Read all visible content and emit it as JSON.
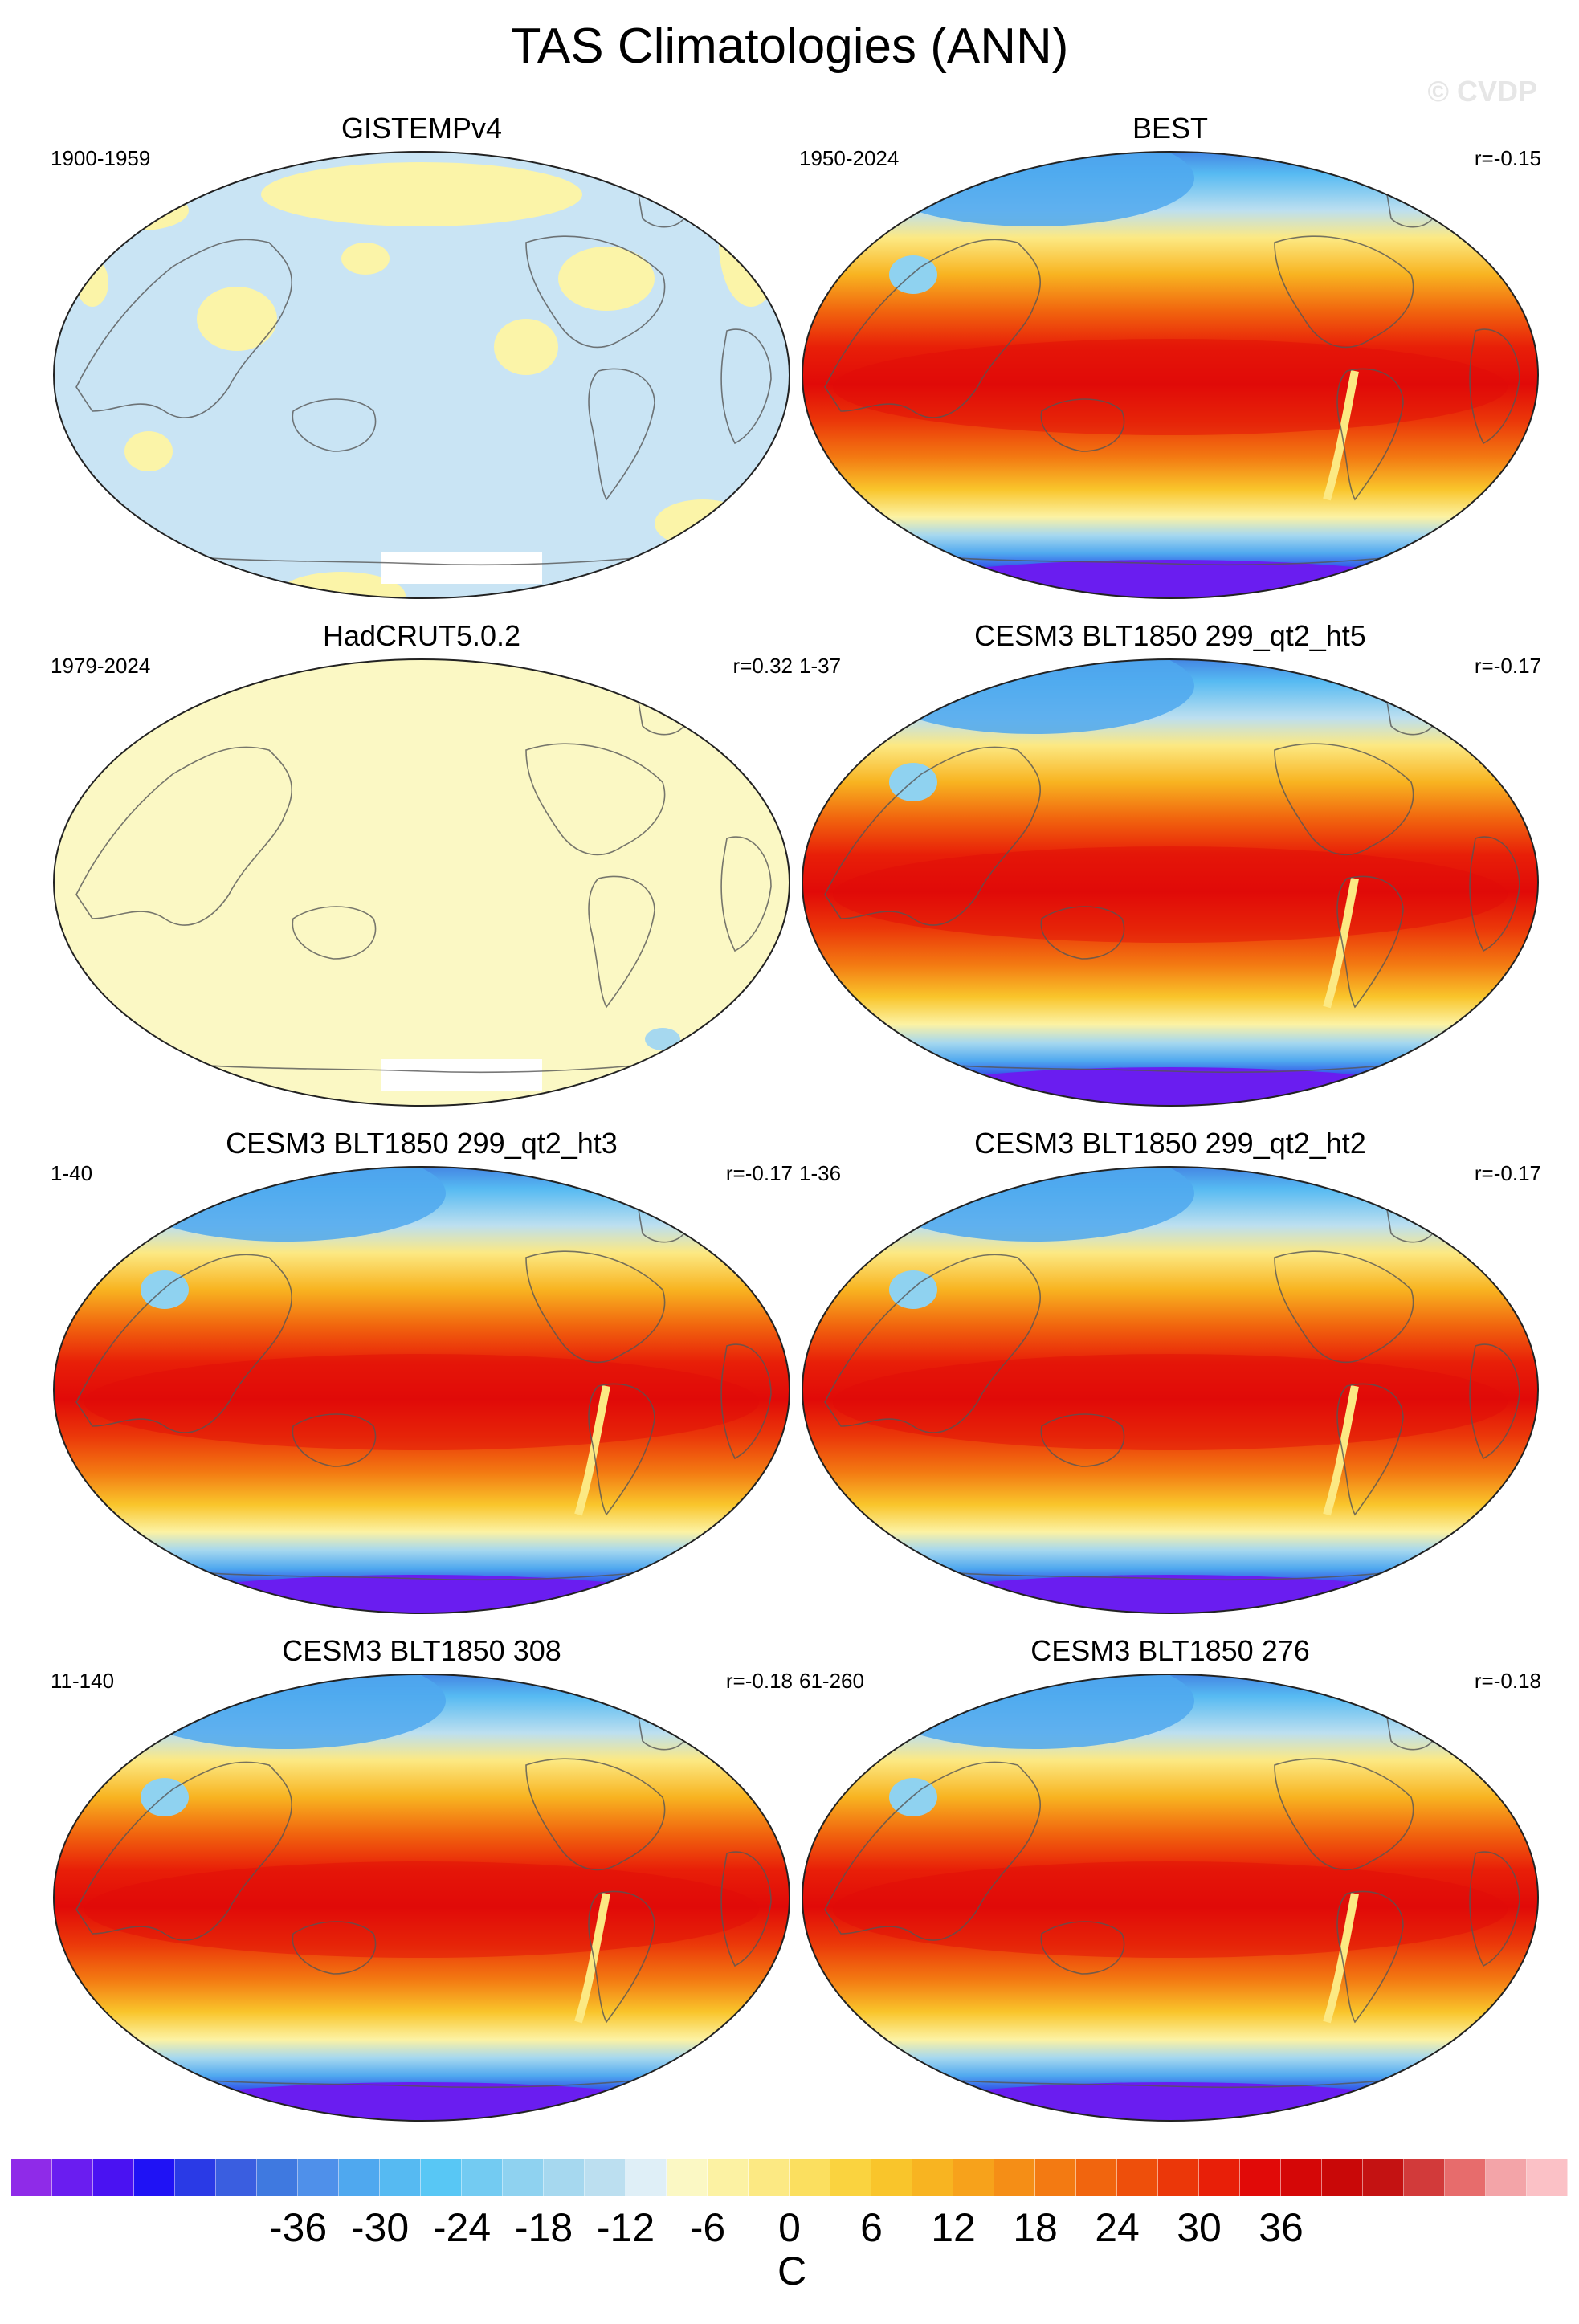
{
  "title": "TAS Climatologies (ANN)",
  "watermark": "© CVDP",
  "panels": [
    {
      "title": "GISTEMPv4",
      "years": "1900-1959",
      "r": "",
      "style": "obs-light"
    },
    {
      "title": "BEST",
      "years": "1950-2024",
      "r": "r=-0.15",
      "style": "full"
    },
    {
      "title": "HadCRUT5.0.2",
      "years": "1979-2024",
      "r": "r=0.32",
      "style": "obs-pale"
    },
    {
      "title": "CESM3 BLT1850 299_qt2_ht5",
      "years": "1-37",
      "r": "r=-0.17",
      "style": "full"
    },
    {
      "title": "CESM3 BLT1850 299_qt2_ht3",
      "years": "1-40",
      "r": "r=-0.17",
      "style": "full"
    },
    {
      "title": "CESM3 BLT1850 299_qt2_ht2",
      "years": "1-36",
      "r": "r=-0.17",
      "style": "full"
    },
    {
      "title": "CESM3 BLT1850 308",
      "years": "11-140",
      "r": "r=-0.18",
      "style": "full"
    },
    {
      "title": "CESM3 BLT1850 276",
      "years": "61-260",
      "r": "r=-0.18",
      "style": "full"
    }
  ],
  "colorbar": {
    "unit": "C",
    "tick_labels": [
      "-36",
      "-30",
      "-24",
      "-18",
      "-12",
      "-6",
      "0",
      "6",
      "12",
      "18",
      "24",
      "30",
      "36"
    ],
    "colors": [
      "#8f2be8",
      "#6a1df0",
      "#4a12f2",
      "#1f12f5",
      "#2a3ae6",
      "#3a5ee0",
      "#3f79e0",
      "#4f90ea",
      "#4fa8ef",
      "#56baf2",
      "#58c7f5",
      "#73cbf2",
      "#8fd2f0",
      "#a6d8ef",
      "#bcdff0",
      "#dfeff7",
      "#fbf8c4",
      "#fcf2a3",
      "#fce983",
      "#fbdf5f",
      "#fad33f",
      "#f9c52b",
      "#f8b421",
      "#f7a21b",
      "#f58e16",
      "#f37a12",
      "#f1650e",
      "#ee4f0b",
      "#eb3709",
      "#e81f08",
      "#e10a08",
      "#d50707",
      "#c90808",
      "#c41212",
      "#d23a3a",
      "#e76c6c",
      "#f3a4a8",
      "#fbc1c6"
    ]
  }
}
